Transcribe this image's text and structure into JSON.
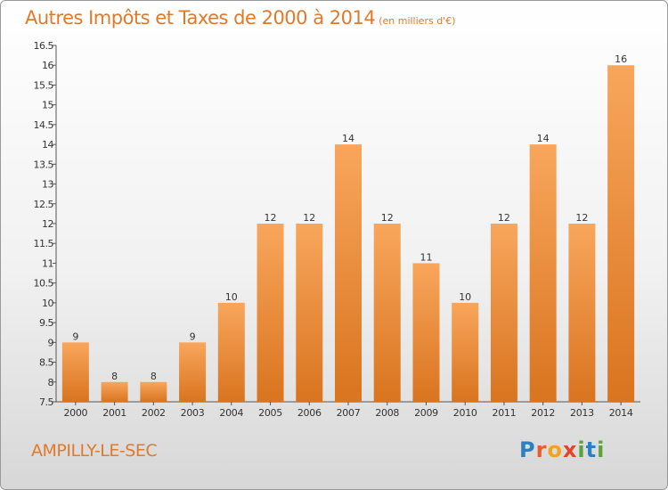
{
  "header": {
    "title": "Autres Impôts et Taxes de 2000 à 2014",
    "unit": "(en milliers d'€)"
  },
  "footer": {
    "city": "AMPILLY-LE-SEC",
    "logo": "Proxiti"
  },
  "colors": {
    "bar_light": "#f8a65c",
    "bar_dark": "#d9741f",
    "title": "#e07a2a"
  },
  "chart_data": {
    "type": "bar",
    "categories": [
      "2000",
      "2001",
      "2002",
      "2003",
      "2004",
      "2005",
      "2006",
      "2007",
      "2008",
      "2009",
      "2010",
      "2011",
      "2012",
      "2013",
      "2014"
    ],
    "values": [
      9,
      8,
      8,
      9,
      10,
      12,
      12,
      14,
      12,
      11,
      10,
      12,
      14,
      12,
      16
    ],
    "ylim": [
      7.5,
      16.5
    ],
    "yticks": [
      "7.5",
      "8",
      "8.5",
      "9",
      "9.5",
      "10",
      "10.5",
      "11",
      "11.5",
      "12",
      "12.5",
      "13",
      "13.5",
      "14",
      "14.5",
      "15",
      "15.5",
      "16",
      "16.5"
    ],
    "grid": false,
    "legend": "none"
  }
}
